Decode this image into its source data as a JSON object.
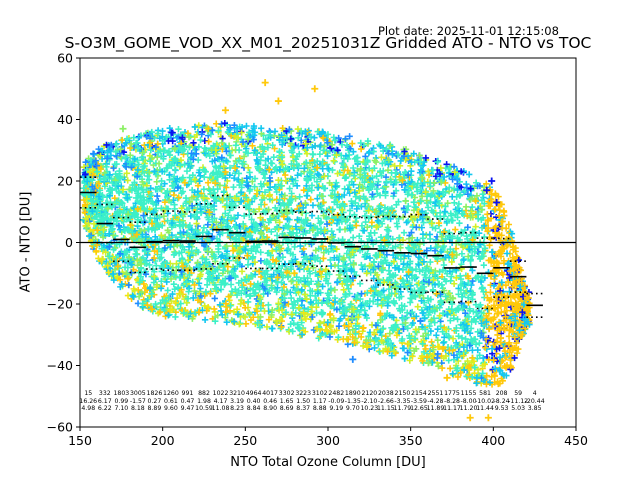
{
  "header": {
    "plot_date": "Plot date: 2025-11-01 12:15:08"
  },
  "chart_data": {
    "type": "scatter",
    "title": "S-O3M_GOME_VOD_XX_M01_20251031Z Gridded ATO - NTO vs TOC",
    "xlabel": "NTO Total Ozone Column [DU]",
    "ylabel": "ATO - NTO [DU]",
    "xlim": [
      150,
      450
    ],
    "ylim": [
      -60,
      60
    ],
    "xticks": [
      150,
      200,
      250,
      300,
      350,
      400,
      450
    ],
    "yticks": [
      -60,
      -40,
      -20,
      0,
      20,
      40,
      60
    ],
    "grid": false,
    "zero_line": 0,
    "marker": "plus",
    "color_palette": [
      "#0a14f0",
      "#1e8cff",
      "#14c8f0",
      "#3cf0c8",
      "#8cf064",
      "#d2f028",
      "#f0e614",
      "#ffc80a"
    ],
    "bin_width": 10,
    "bins": {
      "x_start": [
        150,
        160,
        170,
        180,
        190,
        200,
        210,
        220,
        230,
        240,
        250,
        260,
        270,
        280,
        290,
        300,
        310,
        320,
        330,
        340,
        350,
        360,
        370,
        380,
        390,
        400,
        410,
        420
      ],
      "count": [
        15,
        332,
        1803,
        3005,
        1826,
        1260,
        991,
        882,
        1022,
        3210,
        4964,
        4017,
        3302,
        3223,
        3102,
        2482,
        1890,
        2120,
        2038,
        2150,
        2154,
        2551,
        1775,
        1155,
        581,
        208,
        59,
        4
      ],
      "mean": [
        16.26,
        6.17,
        0.99,
        -1.57,
        0.27,
        0.61,
        0.47,
        1.98,
        4.17,
        3.19,
        0.4,
        0.46,
        1.65,
        1.5,
        1.17,
        -0.09,
        -1.35,
        -2.1,
        -2.66,
        -3.35,
        -3.59,
        -4.28,
        -8.28,
        -8.0,
        -10.02,
        -8.24,
        -11.12,
        -20.44
      ],
      "std": [
        4.98,
        6.22,
        7.1,
        8.18,
        8.89,
        9.6,
        9.47,
        10.59,
        11.08,
        8.23,
        8.84,
        8.9,
        8.69,
        8.37,
        8.88,
        9.19,
        9.7,
        10.23,
        11.15,
        11.79,
        12.65,
        11.89,
        11.17,
        11.2,
        11.44,
        9.53,
        5.03,
        3.85
      ]
    },
    "envelope": {
      "x": [
        150,
        160,
        170,
        180,
        190,
        200,
        220,
        240,
        260,
        280,
        300,
        320,
        340,
        360,
        380,
        395,
        405,
        412,
        420
      ],
      "upper": [
        25,
        30,
        33,
        35,
        36,
        37,
        38,
        39,
        38,
        37,
        36,
        34,
        32,
        28,
        24,
        20,
        14,
        2,
        -16
      ],
      "lower": [
        10,
        -5,
        -12,
        -18,
        -22,
        -24,
        -25,
        -26,
        -28,
        -30,
        -32,
        -34,
        -37,
        -40,
        -44,
        -47,
        -46,
        -40,
        -27
      ]
    }
  }
}
